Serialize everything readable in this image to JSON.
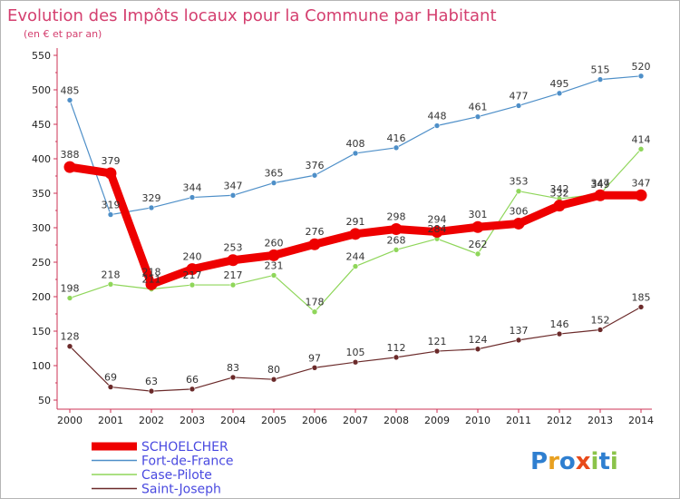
{
  "chart_data": {
    "type": "line",
    "title": "Evolution des Impôts locaux pour la Commune par Habitant",
    "subtitle": "(en € et par an)",
    "x": [
      "2000",
      "2001",
      "2002",
      "2003",
      "2004",
      "2005",
      "2006",
      "2007",
      "2008",
      "2009",
      "2010",
      "2011",
      "2012",
      "2013",
      "2014"
    ],
    "y_ticks": [
      50,
      100,
      150,
      200,
      250,
      300,
      350,
      400,
      450,
      500,
      550
    ],
    "ylim": [
      50,
      550
    ],
    "grid": false,
    "legend_position": "bottom-left",
    "series": [
      {
        "name": "Fort-de-France",
        "color": "#4e8fc8",
        "width": "thin",
        "values": [
          485,
          319,
          329,
          344,
          347,
          365,
          376,
          408,
          416,
          448,
          461,
          477,
          495,
          515,
          520
        ],
        "labels": [
          "485",
          "319",
          "329",
          "344",
          "347",
          "365",
          "376",
          "408",
          "416",
          "448",
          "461",
          "477",
          "495",
          "515",
          "520"
        ]
      },
      {
        "name": "Case-Pilote",
        "color": "#8fd65a",
        "width": "thin",
        "values": [
          198,
          218,
          211,
          217,
          217,
          231,
          178,
          244,
          268,
          284,
          262,
          353,
          342,
          349,
          414
        ],
        "labels": [
          "198",
          "218",
          "211",
          "217",
          "217",
          "231",
          "178",
          "244",
          "268",
          "284",
          "262",
          "353",
          "342",
          "349",
          "414"
        ]
      },
      {
        "name": "Saint-Joseph",
        "color": "#6b2a2a",
        "width": "thin",
        "values": [
          128,
          69,
          63,
          66,
          83,
          80,
          97,
          105,
          112,
          121,
          124,
          137,
          146,
          152,
          185
        ],
        "labels": [
          "128",
          "69",
          "63",
          "66",
          "83",
          "80",
          "97",
          "105",
          "112",
          "121",
          "124",
          "137",
          "146",
          "152",
          "185"
        ]
      },
      {
        "name": "SCHOELCHER",
        "color": "#ee0000",
        "width": "thick",
        "values": [
          388,
          379,
          218,
          240,
          253,
          260,
          276,
          291,
          298,
          294,
          301,
          306,
          332,
          347,
          347
        ],
        "labels": [
          "388",
          "379",
          "218",
          "240",
          "253",
          "260",
          "276",
          "291",
          "298",
          "294",
          "301",
          "306",
          "332",
          "347",
          "347"
        ]
      }
    ],
    "legend_order": [
      "SCHOELCHER",
      "Fort-de-France",
      "Case-Pilote",
      "Saint-Joseph"
    ]
  },
  "logo": {
    "text": "Proxiti",
    "letters": [
      "P",
      "r",
      "o",
      "x",
      "i",
      "t",
      "i"
    ],
    "colors": [
      "#2f7fd0",
      "#e8a020",
      "#2f7fd0",
      "#e84a1a",
      "#8bc34a",
      "#2f7fd0",
      "#8bc34a"
    ]
  }
}
